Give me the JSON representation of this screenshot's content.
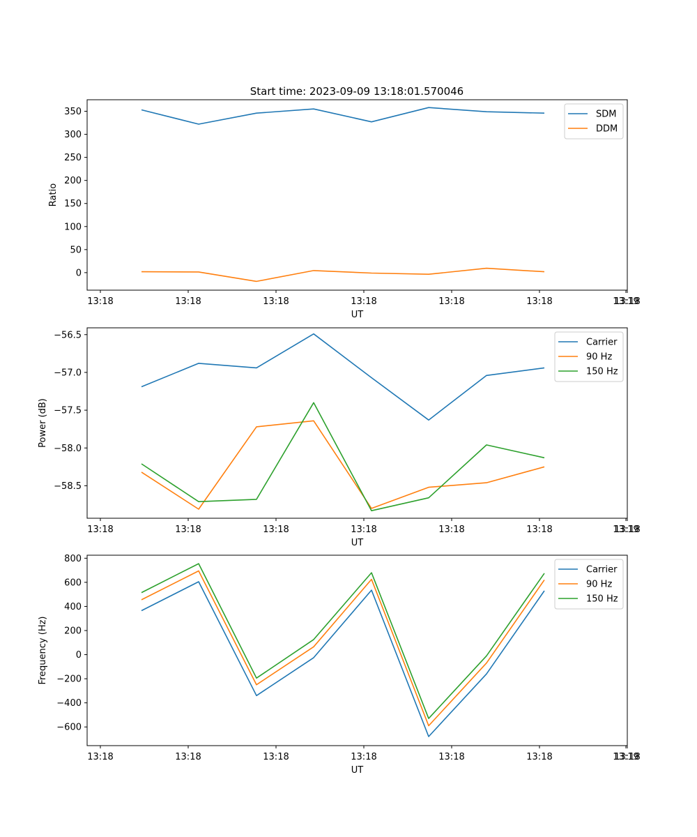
{
  "figure_title": "Start time: 2023-09-09 13:18:01.570046",
  "colors": {
    "c0": "#1f77b4",
    "c1": "#ff7f0e",
    "c2": "#2ca02c"
  },
  "chart_data": [
    {
      "type": "line",
      "title": "Start time: 2023-09-09 13:18:01.570046",
      "xlabel": "UT",
      "ylabel": "Ratio",
      "ylim": [
        -38,
        375
      ],
      "xticklabels": [
        "13:18",
        "13:18",
        "13:18",
        "13:18",
        "13:18",
        "13:18",
        "13:18",
        "13:19"
      ],
      "yticks": [
        {
          "value": 0,
          "label": "0"
        },
        {
          "value": 50,
          "label": "50"
        },
        {
          "value": 100,
          "label": "100"
        },
        {
          "value": 150,
          "label": "150"
        },
        {
          "value": 200,
          "label": "200"
        },
        {
          "value": 250,
          "label": "250"
        },
        {
          "value": 300,
          "label": "300"
        },
        {
          "value": 350,
          "label": "350"
        }
      ],
      "legend_position": "top-right",
      "series": [
        {
          "name": "SDM",
          "color": "#1f77b4",
          "values": [
            353,
            322,
            346,
            355,
            327,
            358,
            349,
            346
          ]
        },
        {
          "name": "DDM",
          "color": "#ff7f0e",
          "values": [
            2,
            1.5,
            -19,
            4.5,
            -1,
            -3.5,
            9.5,
            2
          ]
        }
      ]
    },
    {
      "type": "line",
      "title": "",
      "xlabel": "UT",
      "ylabel": "Power (dB)",
      "ylim": [
        -58.93,
        -56.41
      ],
      "xticklabels": [
        "13:18",
        "13:18",
        "13:18",
        "13:18",
        "13:18",
        "13:18",
        "13:18",
        "13:19"
      ],
      "yticks": [
        {
          "value": -58.5,
          "label": "−58.5"
        },
        {
          "value": -58.0,
          "label": "−58.0"
        },
        {
          "value": -57.5,
          "label": "−57.5"
        },
        {
          "value": -57.0,
          "label": "−57.0"
        },
        {
          "value": -56.5,
          "label": "−56.5"
        }
      ],
      "legend_position": "top-right",
      "series": [
        {
          "name": "Carrier",
          "color": "#1f77b4",
          "values": [
            -57.19,
            -56.88,
            -56.94,
            -56.49,
            -57.07,
            -57.63,
            -57.04,
            -56.94
          ]
        },
        {
          "name": "90 Hz",
          "color": "#ff7f0e",
          "values": [
            -58.32,
            -58.81,
            -57.72,
            -57.64,
            -58.8,
            -58.52,
            -58.46,
            -58.25
          ]
        },
        {
          "name": "150 Hz",
          "color": "#2ca02c",
          "values": [
            -58.21,
            -58.71,
            -58.68,
            -57.4,
            -58.83,
            -58.66,
            -57.96,
            -58.13
          ]
        }
      ]
    },
    {
      "type": "line",
      "title": "",
      "xlabel": "UT",
      "ylabel": "Frequency (Hz)",
      "ylim": [
        -755,
        825
      ],
      "xticklabels": [
        "13:18",
        "13:18",
        "13:18",
        "13:18",
        "13:18",
        "13:18",
        "13:18",
        "13:19"
      ],
      "yticks": [
        {
          "value": -600,
          "label": "−600"
        },
        {
          "value": -400,
          "label": "−400"
        },
        {
          "value": -200,
          "label": "−200"
        },
        {
          "value": 0,
          "label": "0"
        },
        {
          "value": 200,
          "label": "200"
        },
        {
          "value": 400,
          "label": "400"
        },
        {
          "value": 600,
          "label": "600"
        },
        {
          "value": 800,
          "label": "800"
        }
      ],
      "legend_position": "top-right",
      "series": [
        {
          "name": "Carrier",
          "color": "#1f77b4",
          "values": [
            365,
            605,
            -340,
            -25,
            535,
            -680,
            -160,
            530
          ]
        },
        {
          "name": "90 Hz",
          "color": "#ff7f0e",
          "values": [
            455,
            695,
            -250,
            65,
            625,
            -590,
            -70,
            620
          ]
        },
        {
          "name": "150 Hz",
          "color": "#2ca02c",
          "values": [
            515,
            755,
            -195,
            125,
            680,
            -530,
            -10,
            675
          ]
        }
      ]
    }
  ]
}
